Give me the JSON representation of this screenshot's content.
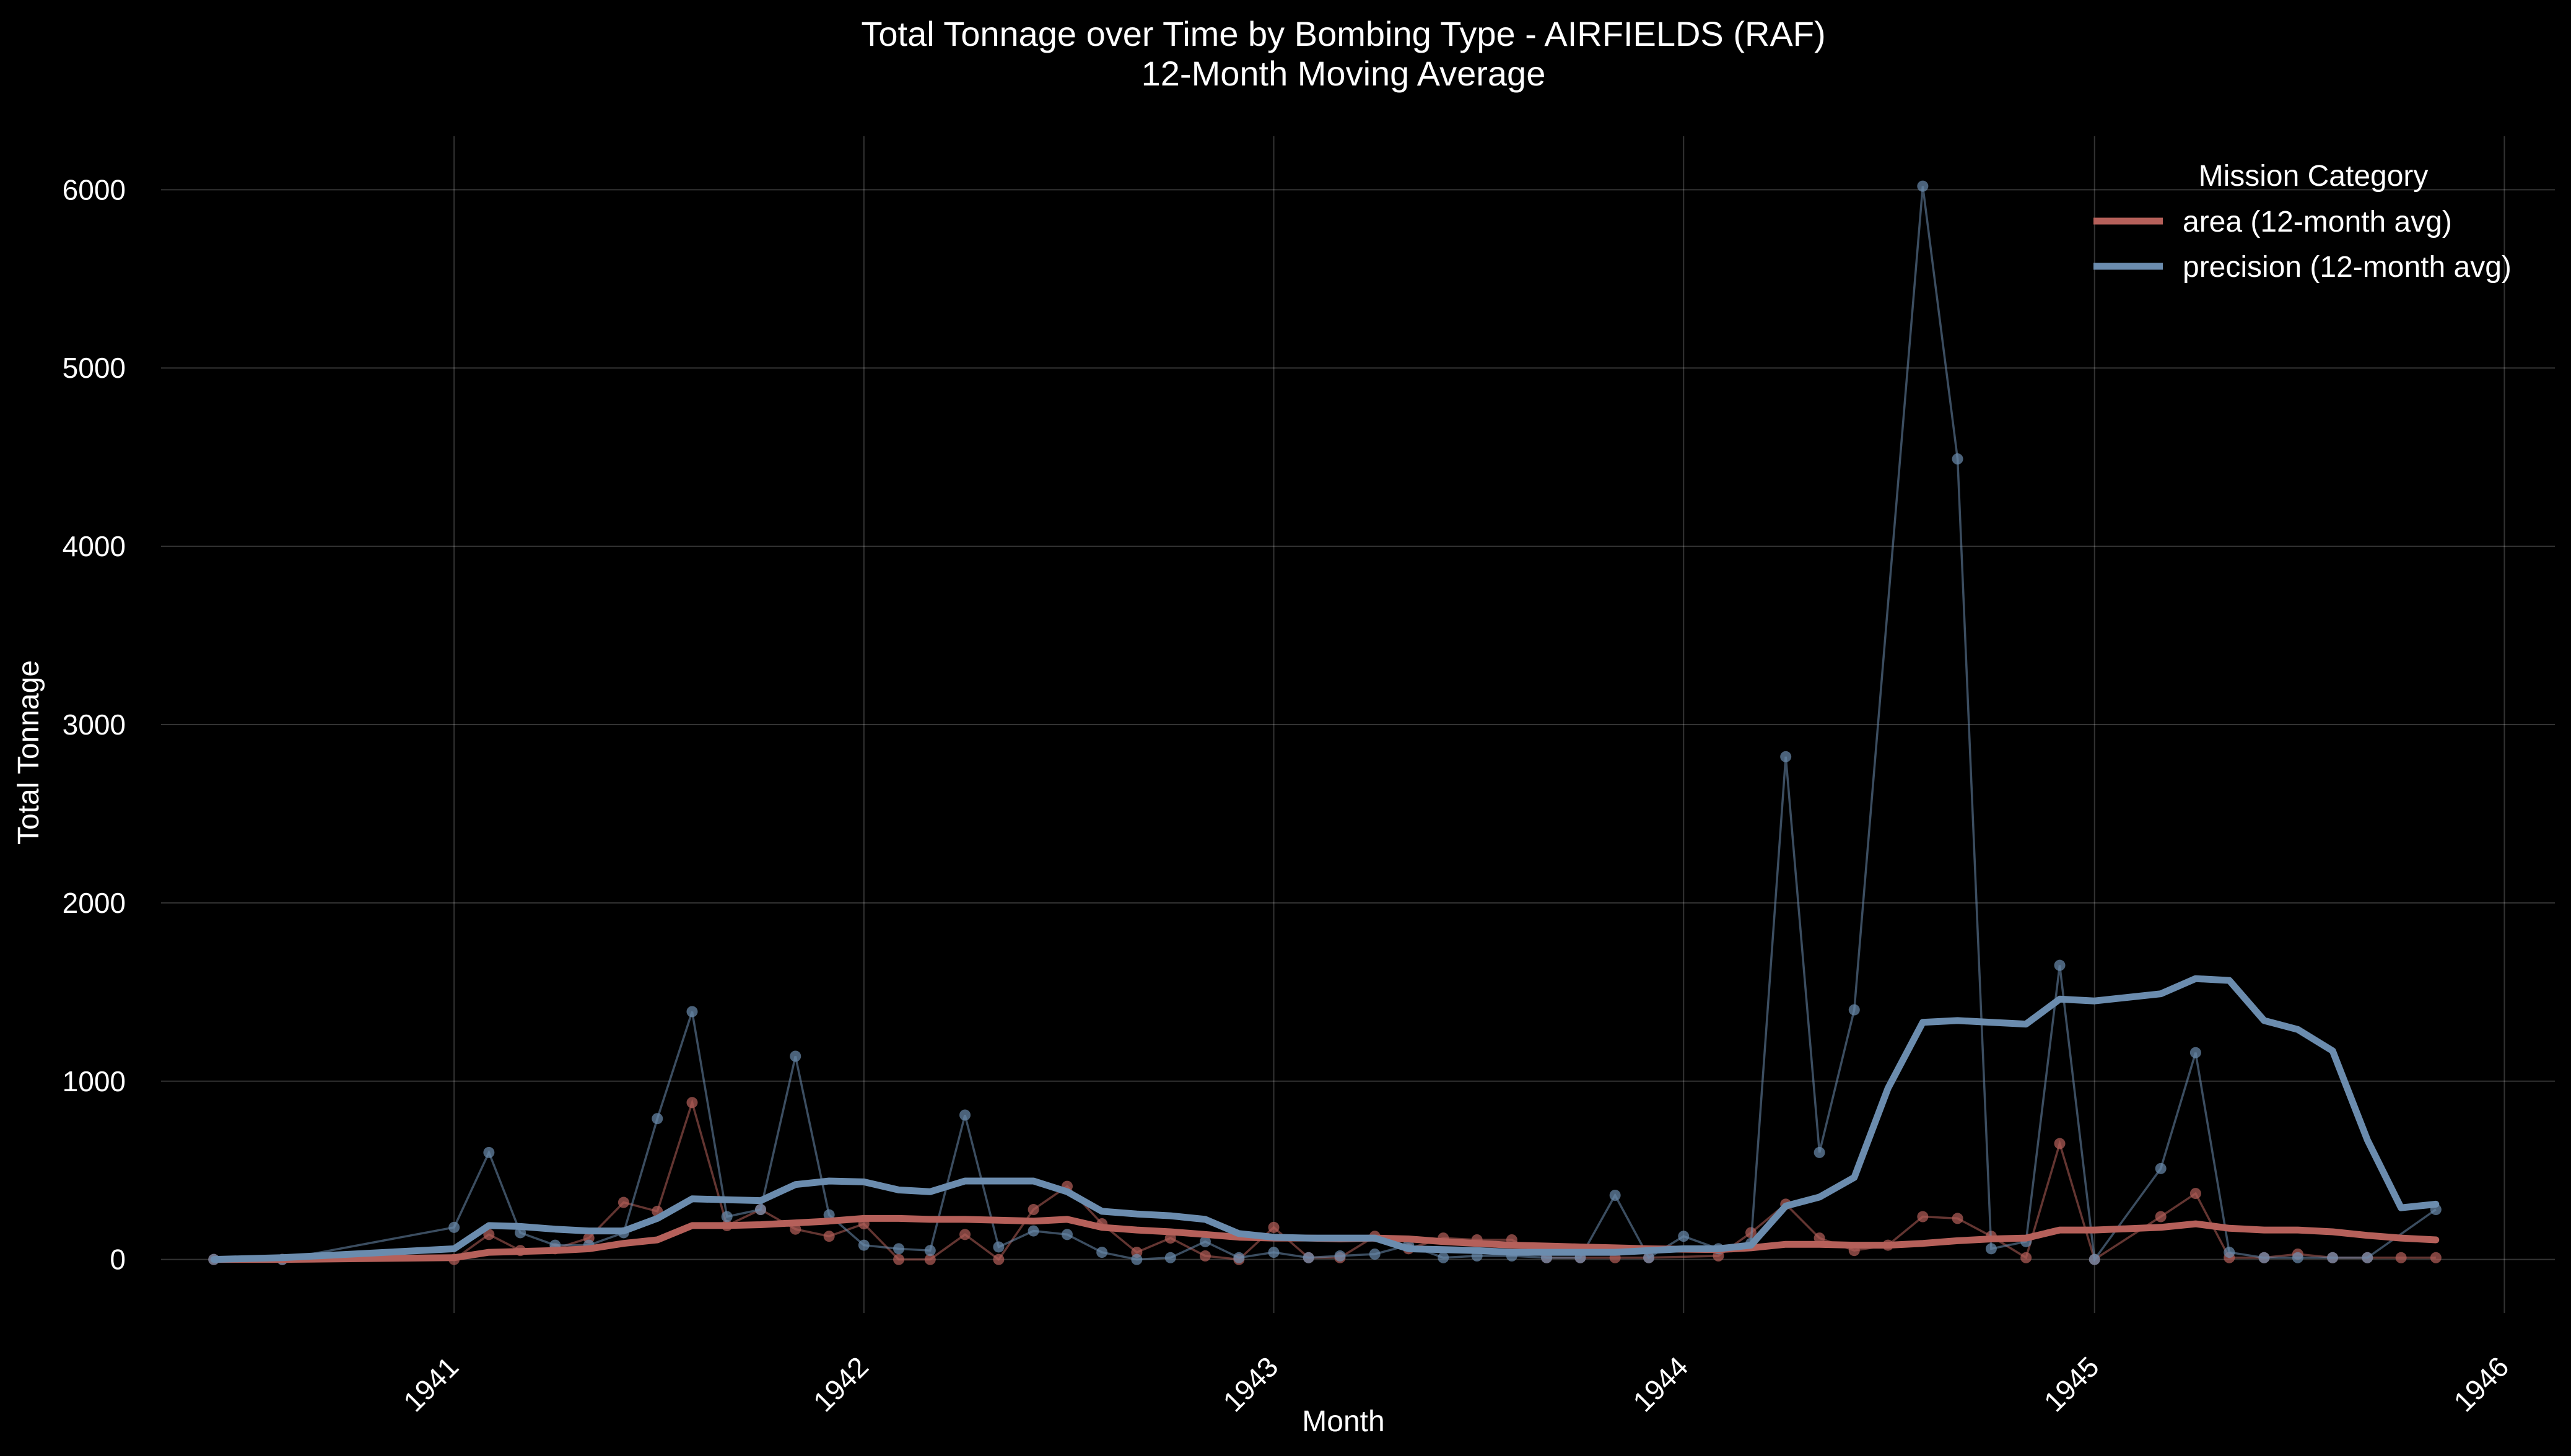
{
  "chart_data": {
    "type": "line",
    "title": "Total Tonnage over Time by Bombing Type - AIRFIELDS  (RAF)",
    "subtitle": "12-Month Moving Average",
    "xlabel": "Month",
    "ylabel": "Total Tonnage",
    "x_range": [
      "1940-04-15",
      "1946-02-15"
    ],
    "ylim": [
      -300,
      6300
    ],
    "x_ticks": [
      1941,
      1942,
      1943,
      1944,
      1945,
      1946
    ],
    "y_ticks": [
      0,
      1000,
      2000,
      3000,
      4000,
      5000,
      6000
    ],
    "grid": true,
    "legend": {
      "title": "Mission Category",
      "placement": "top-right",
      "entries": [
        "area (12-month avg)",
        "precision (12-month avg)"
      ]
    },
    "colors": {
      "area": "#b5605a",
      "precision": "#6b8cae"
    },
    "series": [
      {
        "name": "area (12-month avg)",
        "key": "area",
        "raw": [
          [
            "1940-06-01",
            0
          ],
          [
            "1940-08-01",
            0
          ],
          [
            "1941-01-01",
            0
          ],
          [
            "1941-02-01",
            140
          ],
          [
            "1941-03-01",
            50
          ],
          [
            "1941-04-01",
            60
          ],
          [
            "1941-05-01",
            120
          ],
          [
            "1941-06-01",
            320
          ],
          [
            "1941-07-01",
            270
          ],
          [
            "1941-08-01",
            880
          ],
          [
            "1941-09-01",
            190
          ],
          [
            "1941-10-01",
            280
          ],
          [
            "1941-11-01",
            170
          ],
          [
            "1941-12-01",
            130
          ],
          [
            "1942-01-01",
            200
          ],
          [
            "1942-02-01",
            0
          ],
          [
            "1942-03-01",
            0
          ],
          [
            "1942-04-01",
            140
          ],
          [
            "1942-05-01",
            0
          ],
          [
            "1942-06-01",
            280
          ],
          [
            "1942-07-01",
            410
          ],
          [
            "1942-08-01",
            200
          ],
          [
            "1942-09-01",
            40
          ],
          [
            "1942-10-01",
            120
          ],
          [
            "1942-11-01",
            20
          ],
          [
            "1942-12-01",
            0
          ],
          [
            "1943-01-01",
            180
          ],
          [
            "1943-02-01",
            10
          ],
          [
            "1943-03-01",
            10
          ],
          [
            "1943-04-01",
            130
          ],
          [
            "1943-05-01",
            60
          ],
          [
            "1943-06-01",
            120
          ],
          [
            "1943-07-01",
            110
          ],
          [
            "1943-08-01",
            110
          ],
          [
            "1943-09-01",
            10
          ],
          [
            "1943-10-01",
            10
          ],
          [
            "1943-11-01",
            10
          ],
          [
            "1943-12-01",
            10
          ],
          [
            "1944-02-01",
            20
          ],
          [
            "1944-03-01",
            150
          ],
          [
            "1944-04-01",
            310
          ],
          [
            "1944-05-01",
            120
          ],
          [
            "1944-06-01",
            50
          ],
          [
            "1944-07-01",
            80
          ],
          [
            "1944-08-01",
            240
          ],
          [
            "1944-09-01",
            230
          ],
          [
            "1944-10-01",
            130
          ],
          [
            "1944-11-01",
            10
          ],
          [
            "1944-12-01",
            650
          ],
          [
            "1945-01-01",
            0
          ],
          [
            "1945-03-01",
            240
          ],
          [
            "1945-04-01",
            370
          ],
          [
            "1945-05-01",
            10
          ],
          [
            "1945-06-01",
            10
          ],
          [
            "1945-07-01",
            30
          ],
          [
            "1945-08-01",
            10
          ],
          [
            "1945-09-01",
            10
          ],
          [
            "1945-10-01",
            10
          ],
          [
            "1945-11-01",
            10
          ]
        ],
        "avg": [
          [
            "1940-06-01",
            0
          ],
          [
            "1940-08-01",
            0
          ],
          [
            "1941-01-01",
            10
          ],
          [
            "1941-02-01",
            40
          ],
          [
            "1941-03-01",
            45
          ],
          [
            "1941-04-01",
            50
          ],
          [
            "1941-05-01",
            60
          ],
          [
            "1941-06-01",
            90
          ],
          [
            "1941-07-01",
            110
          ],
          [
            "1941-08-01",
            190
          ],
          [
            "1941-09-01",
            190
          ],
          [
            "1941-10-01",
            195
          ],
          [
            "1941-11-01",
            205
          ],
          [
            "1941-12-01",
            215
          ],
          [
            "1942-01-01",
            230
          ],
          [
            "1942-02-01",
            230
          ],
          [
            "1942-03-01",
            225
          ],
          [
            "1942-04-01",
            225
          ],
          [
            "1942-05-01",
            220
          ],
          [
            "1942-06-01",
            215
          ],
          [
            "1942-07-01",
            225
          ],
          [
            "1942-08-01",
            180
          ],
          [
            "1942-09-01",
            165
          ],
          [
            "1942-10-01",
            155
          ],
          [
            "1942-11-01",
            140
          ],
          [
            "1942-12-01",
            125
          ],
          [
            "1943-01-01",
            120
          ],
          [
            "1943-02-01",
            120
          ],
          [
            "1943-03-01",
            115
          ],
          [
            "1943-04-01",
            120
          ],
          [
            "1943-05-01",
            115
          ],
          [
            "1943-06-01",
            100
          ],
          [
            "1943-07-01",
            90
          ],
          [
            "1943-08-01",
            80
          ],
          [
            "1943-09-01",
            75
          ],
          [
            "1943-10-01",
            70
          ],
          [
            "1943-11-01",
            65
          ],
          [
            "1943-12-01",
            60
          ],
          [
            "1944-02-01",
            55
          ],
          [
            "1944-03-01",
            65
          ],
          [
            "1944-04-01",
            85
          ],
          [
            "1944-05-01",
            85
          ],
          [
            "1944-06-01",
            80
          ],
          [
            "1944-07-01",
            80
          ],
          [
            "1944-08-01",
            90
          ],
          [
            "1944-09-01",
            105
          ],
          [
            "1944-10-01",
            115
          ],
          [
            "1944-11-01",
            120
          ],
          [
            "1944-12-01",
            165
          ],
          [
            "1945-01-01",
            165
          ],
          [
            "1945-03-01",
            180
          ],
          [
            "1945-04-01",
            200
          ],
          [
            "1945-05-01",
            175
          ],
          [
            "1945-06-01",
            165
          ],
          [
            "1945-07-01",
            165
          ],
          [
            "1945-08-01",
            155
          ],
          [
            "1945-09-01",
            135
          ],
          [
            "1945-10-01",
            120
          ],
          [
            "1945-11-01",
            110
          ]
        ]
      },
      {
        "name": "precision (12-month avg)",
        "key": "precision",
        "raw": [
          [
            "1940-06-01",
            0
          ],
          [
            "1940-08-01",
            0
          ],
          [
            "1941-01-01",
            180
          ],
          [
            "1941-02-01",
            600
          ],
          [
            "1941-03-01",
            150
          ],
          [
            "1941-04-01",
            80
          ],
          [
            "1941-05-01",
            80
          ],
          [
            "1941-06-01",
            150
          ],
          [
            "1941-07-01",
            790
          ],
          [
            "1941-08-01",
            1390
          ],
          [
            "1941-09-01",
            240
          ],
          [
            "1941-10-01",
            280
          ],
          [
            "1941-11-01",
            1140
          ],
          [
            "1941-12-01",
            250
          ],
          [
            "1942-01-01",
            80
          ],
          [
            "1942-02-01",
            60
          ],
          [
            "1942-03-01",
            50
          ],
          [
            "1942-04-01",
            810
          ],
          [
            "1942-05-01",
            70
          ],
          [
            "1942-06-01",
            160
          ],
          [
            "1942-07-01",
            140
          ],
          [
            "1942-08-01",
            40
          ],
          [
            "1942-09-01",
            0
          ],
          [
            "1942-10-01",
            10
          ],
          [
            "1942-11-01",
            100
          ],
          [
            "1942-12-01",
            10
          ],
          [
            "1943-01-01",
            40
          ],
          [
            "1943-02-01",
            10
          ],
          [
            "1943-03-01",
            20
          ],
          [
            "1943-04-01",
            30
          ],
          [
            "1943-05-01",
            80
          ],
          [
            "1943-06-01",
            10
          ],
          [
            "1943-07-01",
            20
          ],
          [
            "1943-08-01",
            20
          ],
          [
            "1943-09-01",
            10
          ],
          [
            "1943-10-01",
            10
          ],
          [
            "1943-11-01",
            360
          ],
          [
            "1943-12-01",
            10
          ],
          [
            "1944-01-01",
            130
          ],
          [
            "1944-02-01",
            60
          ],
          [
            "1944-03-01",
            90
          ],
          [
            "1944-04-01",
            2820
          ],
          [
            "1944-05-01",
            600
          ],
          [
            "1944-06-01",
            1400
          ],
          [
            "1944-08-01",
            6020
          ],
          [
            "1944-09-01",
            4490
          ],
          [
            "1944-10-01",
            60
          ],
          [
            "1944-11-01",
            100
          ],
          [
            "1944-12-01",
            1650
          ],
          [
            "1945-01-01",
            0
          ],
          [
            "1945-03-01",
            510
          ],
          [
            "1945-04-01",
            1160
          ],
          [
            "1945-05-01",
            40
          ],
          [
            "1945-06-01",
            10
          ],
          [
            "1945-07-01",
            10
          ],
          [
            "1945-08-01",
            10
          ],
          [
            "1945-09-01",
            10
          ],
          [
            "1945-11-01",
            280
          ]
        ],
        "avg": [
          [
            "1940-06-01",
            0
          ],
          [
            "1940-08-01",
            10
          ],
          [
            "1941-01-01",
            60
          ],
          [
            "1941-02-01",
            190
          ],
          [
            "1941-03-01",
            185
          ],
          [
            "1941-04-01",
            170
          ],
          [
            "1941-05-01",
            160
          ],
          [
            "1941-06-01",
            160
          ],
          [
            "1941-07-01",
            230
          ],
          [
            "1941-08-01",
            340
          ],
          [
            "1941-09-01",
            335
          ],
          [
            "1941-10-01",
            330
          ],
          [
            "1941-11-01",
            420
          ],
          [
            "1941-12-01",
            440
          ],
          [
            "1942-01-01",
            435
          ],
          [
            "1942-02-01",
            390
          ],
          [
            "1942-03-01",
            380
          ],
          [
            "1942-04-01",
            440
          ],
          [
            "1942-05-01",
            440
          ],
          [
            "1942-06-01",
            440
          ],
          [
            "1942-07-01",
            380
          ],
          [
            "1942-08-01",
            270
          ],
          [
            "1942-09-01",
            255
          ],
          [
            "1942-10-01",
            245
          ],
          [
            "1942-11-01",
            225
          ],
          [
            "1942-12-01",
            145
          ],
          [
            "1943-01-01",
            125
          ],
          [
            "1943-02-01",
            120
          ],
          [
            "1943-03-01",
            120
          ],
          [
            "1943-04-01",
            120
          ],
          [
            "1943-05-01",
            60
          ],
          [
            "1943-06-01",
            55
          ],
          [
            "1943-07-01",
            50
          ],
          [
            "1943-08-01",
            40
          ],
          [
            "1943-09-01",
            40
          ],
          [
            "1943-10-01",
            40
          ],
          [
            "1943-11-01",
            40
          ],
          [
            "1943-12-01",
            50
          ],
          [
            "1944-01-01",
            60
          ],
          [
            "1944-02-01",
            60
          ],
          [
            "1944-03-01",
            80
          ],
          [
            "1944-04-01",
            300
          ],
          [
            "1944-05-01",
            350
          ],
          [
            "1944-06-01",
            460
          ],
          [
            "1944-07-01",
            960
          ],
          [
            "1944-08-01",
            1330
          ],
          [
            "1944-09-01",
            1340
          ],
          [
            "1944-10-01",
            1330
          ],
          [
            "1944-11-01",
            1320
          ],
          [
            "1944-12-01",
            1460
          ],
          [
            "1945-01-01",
            1450
          ],
          [
            "1945-03-01",
            1490
          ],
          [
            "1945-04-01",
            1575
          ],
          [
            "1945-05-01",
            1565
          ],
          [
            "1945-06-01",
            1340
          ],
          [
            "1945-07-01",
            1290
          ],
          [
            "1945-08-01",
            1170
          ],
          [
            "1945-09-01",
            670
          ],
          [
            "1945-10-01",
            290
          ],
          [
            "1945-11-01",
            310
          ]
        ]
      }
    ]
  }
}
